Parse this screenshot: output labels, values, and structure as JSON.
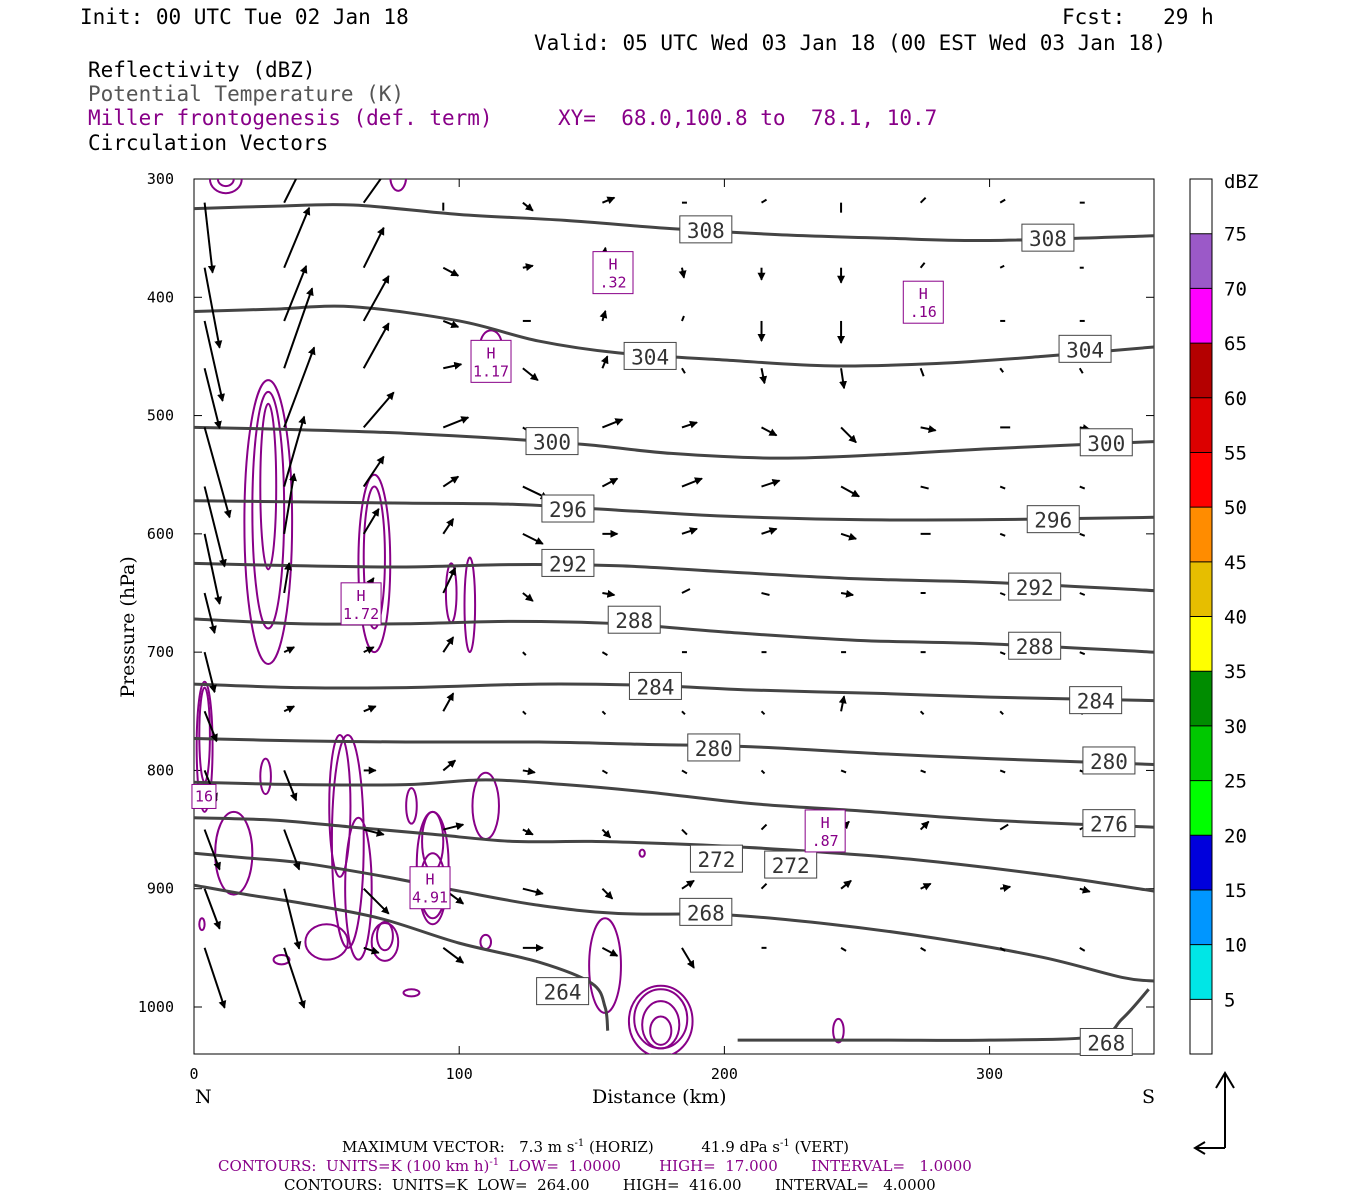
{
  "header": {
    "init": "Init: 00 UTC Tue 02 Jan 18",
    "fcst": "Fcst:   29 h",
    "valid": "Valid: 05 UTC Wed 03 Jan 18 (00 EST Wed 03 Jan 18)",
    "fields": [
      "Reflectivity (dBZ)",
      "Potential Temperature (K)",
      "Miller frontogenesis (def. term)",
      "Circulation Vectors"
    ],
    "xy": "XY=  68.0,100.8 to  78.1, 10.7"
  },
  "colorbar": {
    "unit": "dBZ",
    "labels": [
      "5",
      "10",
      "15",
      "20",
      "25",
      "30",
      "35",
      "40",
      "45",
      "50",
      "55",
      "60",
      "65",
      "70",
      "75"
    ],
    "colors": [
      "#ffffff",
      "#00e6e6",
      "#0096ff",
      "#0000dc",
      "#00ff00",
      "#00c800",
      "#008c00",
      "#ffff00",
      "#e6be00",
      "#ff8c00",
      "#ff0000",
      "#dc0000",
      "#b40000",
      "#ff00ff",
      "#9b59c8",
      "#ffffff"
    ]
  },
  "footer": {
    "line1a": "MAXIMUM VECTOR:   7.3 m s",
    "line1b": "-1",
    "line1c": " (HORIZ)          41.9 dPa s",
    "line1d": "-1",
    "line1e": " (VERT)",
    "line2a": "CONTOURS:  UNITS=K (100 km h)",
    "line2b": "-1",
    "line2c": "  LOW=  1.0000        HIGH=  17.000       INTERVAL=   1.0000",
    "line3": "CONTOURS:  UNITS=K  LOW=  264.00       HIGH=  416.00       INTERVAL=   4.0000"
  },
  "chart_data": {
    "type": "contour",
    "xlabel": "Distance (km)",
    "ylabel": "Pressure (hPa)",
    "xlim": [
      0,
      362
    ],
    "ylim": [
      1040,
      300
    ],
    "x_ticks": [
      "0",
      "100",
      "200",
      "300"
    ],
    "x_tick_values": [
      0,
      100,
      200,
      300
    ],
    "y_ticks": [
      "300",
      "400",
      "500",
      "600",
      "700",
      "800",
      "900",
      "1000"
    ],
    "y_tick_values": [
      300,
      400,
      500,
      600,
      700,
      800,
      900,
      1000
    ],
    "x_end_labels": {
      "left": "N",
      "right": "S"
    },
    "theta_contours": [
      {
        "label": "308",
        "points": [
          [
            0,
            325
          ],
          [
            30,
            323
          ],
          [
            60,
            322
          ],
          [
            100,
            330
          ],
          [
            140,
            335
          ],
          [
            180,
            342
          ],
          [
            220,
            347
          ],
          [
            260,
            350
          ],
          [
            300,
            352
          ],
          [
            362,
            348
          ]
        ],
        "label_pos": [
          [
            193,
            343
          ],
          [
            322,
            350
          ]
        ]
      },
      {
        "label": "304",
        "points": [
          [
            0,
            412
          ],
          [
            30,
            410
          ],
          [
            60,
            408
          ],
          [
            100,
            420
          ],
          [
            130,
            437
          ],
          [
            160,
            447
          ],
          [
            200,
            453
          ],
          [
            240,
            458
          ],
          [
            280,
            456
          ],
          [
            320,
            450
          ],
          [
            362,
            442
          ]
        ],
        "label_pos": [
          [
            172,
            450
          ],
          [
            336,
            444
          ]
        ]
      },
      {
        "label": "300",
        "points": [
          [
            0,
            510
          ],
          [
            40,
            512
          ],
          [
            80,
            515
          ],
          [
            120,
            520
          ],
          [
            150,
            525
          ],
          [
            180,
            532
          ],
          [
            220,
            536
          ],
          [
            260,
            533
          ],
          [
            300,
            528
          ],
          [
            362,
            522
          ]
        ],
        "label_pos": [
          [
            135,
            522
          ],
          [
            344,
            523
          ]
        ]
      },
      {
        "label": "296",
        "points": [
          [
            0,
            572
          ],
          [
            40,
            573
          ],
          [
            80,
            574
          ],
          [
            120,
            575
          ],
          [
            160,
            580
          ],
          [
            200,
            585
          ],
          [
            250,
            588
          ],
          [
            300,
            588
          ],
          [
            362,
            586
          ]
        ],
        "label_pos": [
          [
            141,
            579
          ],
          [
            324,
            588
          ]
        ]
      },
      {
        "label": "292",
        "points": [
          [
            0,
            625
          ],
          [
            40,
            627
          ],
          [
            80,
            628
          ],
          [
            120,
            626
          ],
          [
            160,
            627
          ],
          [
            200,
            632
          ],
          [
            250,
            638
          ],
          [
            300,
            641
          ],
          [
            362,
            648
          ]
        ],
        "label_pos": [
          [
            141,
            625
          ],
          [
            317,
            645
          ]
        ]
      },
      {
        "label": "288",
        "points": [
          [
            0,
            672
          ],
          [
            40,
            676
          ],
          [
            80,
            676
          ],
          [
            120,
            674
          ],
          [
            160,
            676
          ],
          [
            200,
            683
          ],
          [
            250,
            690
          ],
          [
            300,
            693
          ],
          [
            362,
            700
          ]
        ],
        "label_pos": [
          [
            166,
            673
          ],
          [
            317,
            695
          ]
        ]
      },
      {
        "label": "284",
        "points": [
          [
            0,
            727
          ],
          [
            40,
            730
          ],
          [
            80,
            730
          ],
          [
            130,
            727
          ],
          [
            170,
            728
          ],
          [
            210,
            732
          ],
          [
            260,
            735
          ],
          [
            300,
            738
          ],
          [
            362,
            741
          ]
        ],
        "label_pos": [
          [
            174,
            729
          ],
          [
            340,
            741
          ]
        ]
      },
      {
        "label": "280",
        "points": [
          [
            0,
            773
          ],
          [
            40,
            775
          ],
          [
            80,
            776
          ],
          [
            130,
            776
          ],
          [
            170,
            778
          ],
          [
            210,
            780
          ],
          [
            260,
            786
          ],
          [
            300,
            790
          ],
          [
            362,
            795
          ]
        ],
        "label_pos": [
          [
            196,
            781
          ],
          [
            345,
            792
          ]
        ]
      },
      {
        "label": "276",
        "points": [
          [
            0,
            810
          ],
          [
            40,
            812
          ],
          [
            80,
            812
          ],
          [
            110,
            808
          ],
          [
            140,
            812
          ],
          [
            170,
            818
          ],
          [
            210,
            828
          ],
          [
            250,
            834
          ],
          [
            300,
            842
          ],
          [
            362,
            848
          ]
        ],
        "label_pos": [
          [
            345,
            845
          ]
        ]
      },
      {
        "label": "272",
        "points": [
          [
            0,
            840
          ],
          [
            30,
            842
          ],
          [
            60,
            848
          ],
          [
            90,
            854
          ],
          [
            120,
            860
          ],
          [
            150,
            860
          ],
          [
            180,
            862
          ],
          [
            200,
            864
          ],
          [
            230,
            868
          ],
          [
            270,
            875
          ],
          [
            320,
            888
          ],
          [
            362,
            902
          ]
        ],
        "label_pos": [
          [
            197,
            875
          ],
          [
            225,
            880
          ]
        ]
      },
      {
        "label": "268",
        "points": [
          [
            0,
            870
          ],
          [
            20,
            874
          ],
          [
            40,
            878
          ],
          [
            70,
            889
          ],
          [
            100,
            902
          ],
          [
            130,
            914
          ],
          [
            160,
            921
          ],
          [
            200,
            922
          ],
          [
            240,
            930
          ],
          [
            280,
            942
          ],
          [
            320,
            958
          ],
          [
            350,
            975
          ],
          [
            362,
            978
          ]
        ],
        "label_pos": [
          [
            193,
            920
          ]
        ]
      },
      {
        "label": "264",
        "points": [
          [
            0,
            897
          ],
          [
            20,
            905
          ],
          [
            40,
            912
          ],
          [
            70,
            925
          ],
          [
            100,
            946
          ],
          [
            130,
            962
          ],
          [
            150,
            980
          ],
          [
            155,
            1000
          ],
          [
            156,
            1020
          ]
        ],
        "label_pos": [
          [
            139,
            987
          ]
        ]
      },
      {
        "label": "268",
        "points": [
          [
            360,
            985
          ],
          [
            350,
            1010
          ],
          [
            340,
            1025
          ],
          [
            300,
            1028
          ],
          [
            260,
            1028
          ],
          [
            220,
            1028
          ],
          [
            205,
            1028
          ]
        ],
        "label_pos": [
          [
            344,
            1030
          ]
        ]
      }
    ],
    "miller_maxima": [
      {
        "label": "H",
        "value": ".32",
        "x": 158,
        "p": 380
      },
      {
        "label": "H",
        "value": ".16",
        "x": 275,
        "p": 405
      },
      {
        "label": "H",
        "value": "1.17",
        "x": 112,
        "p": 455
      },
      {
        "label": "H",
        "value": "1.72",
        "x": 63,
        "p": 660
      },
      {
        "label": "H",
        "value": "4.91",
        "x": 89,
        "p": 900
      },
      {
        "label": "H",
        "value": ".87",
        "x": 238,
        "p": 852
      },
      {
        "label": "",
        "value": "16",
        "x": 3,
        "p": 822
      }
    ]
  }
}
